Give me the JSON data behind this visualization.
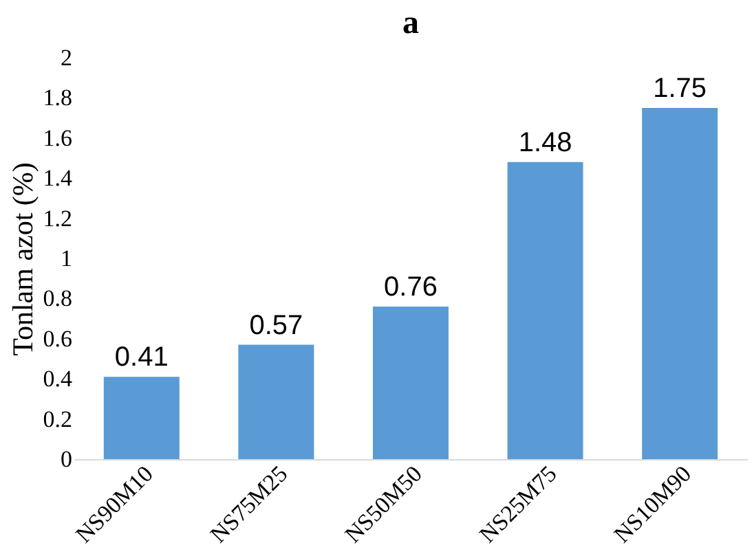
{
  "chart_data": {
    "type": "bar",
    "title": "a",
    "ylabel": "Tonlam azot (%)",
    "categories": [
      "NS90M10",
      "NS75M25",
      "NS50M50",
      "NS25M75",
      "NS10M90"
    ],
    "values": [
      0.41,
      0.57,
      0.76,
      1.48,
      1.75
    ],
    "color": "#5b9bd5",
    "ylim": [
      0,
      2
    ],
    "yticks": [
      0,
      0.2,
      0.4,
      0.6,
      0.8,
      1,
      1.2,
      1.4,
      1.6,
      1.8,
      2
    ],
    "grid": false,
    "data_labels": true
  }
}
